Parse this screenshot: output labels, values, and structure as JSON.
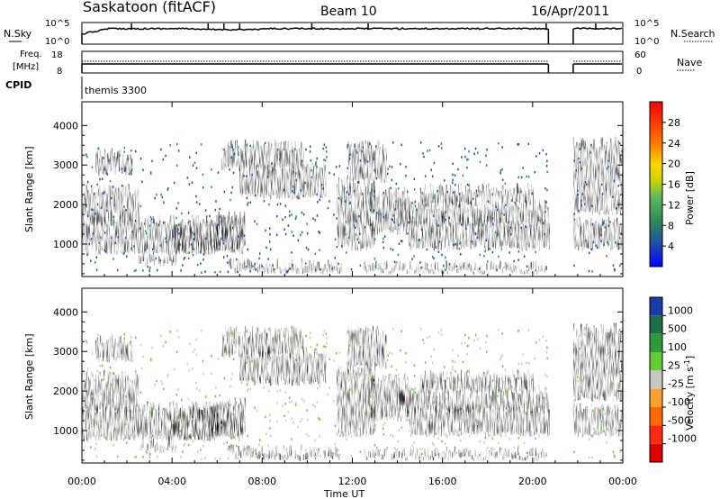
{
  "header": {
    "title": "Saskatoon (fitACF)",
    "beam": "Beam 10",
    "date": "16/Apr/2011"
  },
  "nsky_panel": {
    "left_label": "N.Sky",
    "right_label": "N.Search",
    "left_ticks": [
      "10^5",
      "10^0"
    ],
    "right_ticks": [
      "10^5",
      "10^0"
    ]
  },
  "freq_panel": {
    "left_label_1": "Freq.",
    "left_label_2": "[MHz]",
    "right_label": "Nave",
    "left_ticks": [
      "18",
      "8"
    ],
    "right_ticks": [
      "60",
      "0"
    ]
  },
  "cpid": {
    "label": "CPID",
    "value": "themis 3300"
  },
  "chart_data": [
    {
      "type": "heatmap",
      "name": "power",
      "ylabel": "Slant Range [km]",
      "yticks": [
        "1000",
        "2000",
        "3000",
        "4000"
      ],
      "ylim": [
        180,
        4600
      ],
      "xlim_hours": [
        0,
        24
      ],
      "colorbar_label": "Power [dB]",
      "colorbar_ticks": [
        "4",
        "8",
        "12",
        "16",
        "20",
        "24",
        "28"
      ],
      "colorbar_colors": [
        "#0000ff",
        "#1f4fa6",
        "#2e8b57",
        "#5cb85c",
        "#c8d400",
        "#ffd700",
        "#ff8c00",
        "#ff4500",
        "#ff0000"
      ],
      "data_gaps_hours": [
        [
          20.7,
          21.8
        ]
      ]
    },
    {
      "type": "heatmap",
      "name": "velocity",
      "ylabel": "Slant Range [km]",
      "yticks": [
        "1000",
        "2000",
        "3000",
        "4000"
      ],
      "ylim": [
        180,
        4600
      ],
      "xlim_hours": [
        0,
        24
      ],
      "colorbar_label": "Velocity [m s",
      "colorbar_label_sup": "-1",
      "colorbar_label_end": "]",
      "colorbar_ticks": [
        "1000",
        "500",
        "100",
        "25",
        "-25",
        "-100",
        "-500",
        "-1000"
      ],
      "colorbar_colors": [
        "#1c3aa8",
        "#1f6e4a",
        "#2e9b3a",
        "#66cc33",
        "#c8c8c0",
        "#ffa030",
        "#ff6a00",
        "#ff2a10",
        "#e00000"
      ],
      "xticks": [
        "00:00",
        "04:00",
        "08:00",
        "12:00",
        "16:00",
        "20:00",
        "00:00"
      ],
      "xlabel": "Time UT",
      "data_gaps_hours": [
        [
          20.7,
          21.8
        ]
      ]
    }
  ]
}
